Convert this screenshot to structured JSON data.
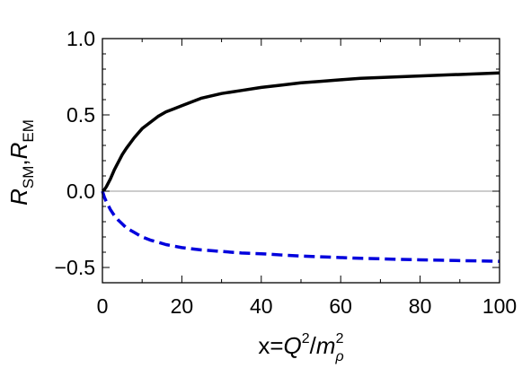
{
  "chart_data": {
    "type": "line",
    "xlabel": "x=Q²/m²ρ",
    "xlabel_parts": {
      "pre": "x=",
      "q": "Q",
      "q_sup": "2",
      "slash": "/",
      "m": "m",
      "m_sup": "2",
      "m_sub": "ρ"
    },
    "ylabel": "R_SM,R_EM",
    "ylabel_parts": {
      "r1": "R",
      "sub1": "SM",
      "comma": ",",
      "r2": "R",
      "sub2": "EM"
    },
    "xlim": [
      0,
      100
    ],
    "ylim": [
      -0.6,
      1.0
    ],
    "x_ticks": [
      0,
      20,
      40,
      60,
      80,
      100
    ],
    "x_tick_labels": [
      "0",
      "20",
      "40",
      "60",
      "80",
      "100"
    ],
    "y_ticks": [
      1.0,
      0.5,
      0.0,
      -0.5
    ],
    "y_tick_labels": [
      "1.0",
      "0.5",
      "0.0",
      "−0.5"
    ],
    "grid": false,
    "zero_line": true,
    "series": [
      {
        "style": "solid",
        "color": "#000000",
        "x": [
          0,
          0.5,
          1,
          2,
          3,
          4,
          5,
          6,
          8,
          10,
          12,
          14,
          16,
          18,
          20,
          25,
          30,
          35,
          40,
          45,
          50,
          55,
          60,
          65,
          70,
          75,
          80,
          85,
          90,
          95,
          100
        ],
        "y": [
          0,
          0.01,
          0.03,
          0.08,
          0.14,
          0.19,
          0.24,
          0.28,
          0.35,
          0.41,
          0.45,
          0.49,
          0.52,
          0.54,
          0.56,
          0.61,
          0.64,
          0.66,
          0.68,
          0.695,
          0.71,
          0.72,
          0.73,
          0.74,
          0.745,
          0.75,
          0.755,
          0.76,
          0.765,
          0.77,
          0.775
        ]
      },
      {
        "style": "dashed",
        "color": "#0000dd",
        "x": [
          0,
          0.5,
          1,
          2,
          3,
          4,
          5,
          6,
          8,
          10,
          12,
          14,
          16,
          18,
          20,
          25,
          30,
          35,
          40,
          45,
          50,
          55,
          60,
          65,
          70,
          75,
          80,
          85,
          90,
          95,
          100
        ],
        "y": [
          0,
          -0.04,
          -0.07,
          -0.12,
          -0.16,
          -0.19,
          -0.215,
          -0.24,
          -0.27,
          -0.3,
          -0.32,
          -0.335,
          -0.35,
          -0.36,
          -0.37,
          -0.385,
          -0.395,
          -0.405,
          -0.41,
          -0.418,
          -0.425,
          -0.43,
          -0.435,
          -0.44,
          -0.443,
          -0.447,
          -0.45,
          -0.452,
          -0.455,
          -0.457,
          -0.46
        ]
      }
    ]
  }
}
